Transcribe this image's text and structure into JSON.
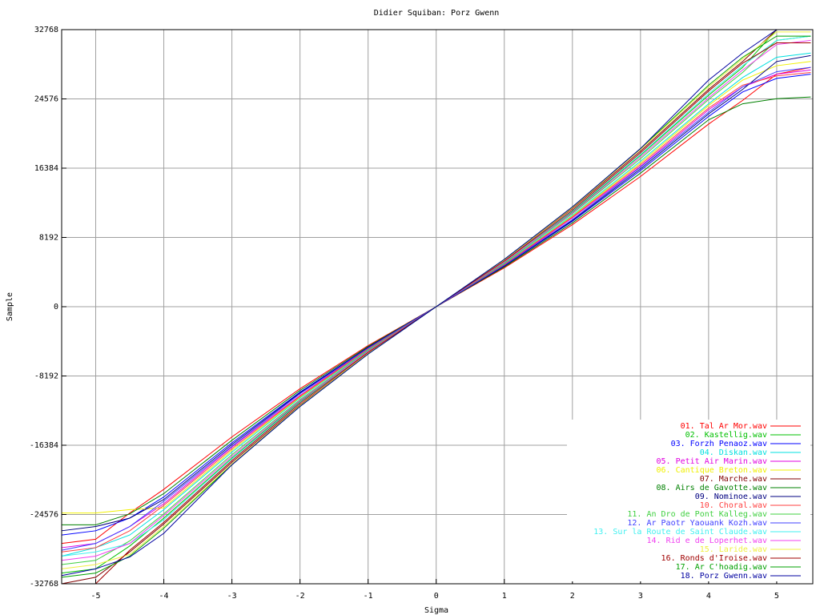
{
  "chart_data": {
    "type": "line",
    "title": "Didier Squiban: Porz Gwenn",
    "x_label": "Sigma",
    "y_label": "Sample",
    "xlim": [
      -5.5,
      5.53
    ],
    "ylim": [
      -32768,
      32768
    ],
    "xticks": [
      -5,
      -4,
      -3,
      -2,
      -1,
      0,
      1,
      2,
      3,
      4,
      5
    ],
    "yticks": [
      -32768,
      -24576,
      -16384,
      -8192,
      0,
      8192,
      16384,
      24576,
      32768
    ],
    "grid": true,
    "legend": "lower right",
    "x": [
      -5.5,
      -5,
      -4.5,
      -4,
      -3,
      -2,
      -1,
      0,
      1,
      2,
      3,
      4,
      4.5,
      5,
      5.5
    ],
    "series": [
      {
        "name": "01. Tal Ar Mor.wav",
        "color": "#ff0000",
        "values": [
          -28000,
          -27500,
          -24400,
          -21600,
          -15400,
          -9700,
          -4600,
          0,
          4600,
          9700,
          15400,
          21600,
          24400,
          27500,
          28300
        ]
      },
      {
        "name": "02. Kastellig.wav",
        "color": "#00c000",
        "values": [
          -31500,
          -31000,
          -28300,
          -25000,
          -17900,
          -11200,
          -5300,
          0,
          5300,
          11200,
          17900,
          25000,
          28300,
          32767,
          32767
        ]
      },
      {
        "name": "03. Forzh Penaoz.wav",
        "color": "#0000ff",
        "values": [
          -27000,
          -26500,
          -25000,
          -22500,
          -16100,
          -10100,
          -4800,
          0,
          4800,
          10100,
          16100,
          22500,
          25400,
          27000,
          27500
        ]
      },
      {
        "name": "04. Diskan.wav",
        "color": "#00e0e0",
        "values": [
          -29500,
          -28500,
          -27000,
          -24000,
          -17200,
          -10800,
          -5100,
          0,
          5100,
          10800,
          17200,
          24000,
          27100,
          29500,
          30000
        ]
      },
      {
        "name": "05. Petit Air Marin.wav",
        "color": "#e000e0",
        "values": [
          -28500,
          -28000,
          -26000,
          -23300,
          -16600,
          -10500,
          -4900,
          0,
          4900,
          10500,
          16600,
          23300,
          26000,
          27500,
          28000
        ]
      },
      {
        "name": "06. Cantique Breton.wav",
        "color": "#f0f000",
        "values": [
          -24400,
          -24400,
          -24000,
          -23800,
          -17000,
          -10700,
          -5000,
          0,
          5000,
          10700,
          17000,
          23800,
          26800,
          28500,
          29000
        ]
      },
      {
        "name": "07. Marche.wav",
        "color": "#800000",
        "values": [
          -32767,
          -32000,
          -29000,
          -25700,
          -18400,
          -11600,
          -5500,
          0,
          5500,
          11600,
          18400,
          25700,
          29000,
          32767,
          32767
        ]
      },
      {
        "name": "08. Airs de Gavotte.wav",
        "color": "#008000",
        "values": [
          -25800,
          -25800,
          -24500,
          -22100,
          -15800,
          -9900,
          -4700,
          0,
          4700,
          9900,
          15800,
          22100,
          24000,
          24600,
          24800
        ]
      },
      {
        "name": "09. Nominoe.wav",
        "color": "#000080",
        "values": [
          -26500,
          -26000,
          -25000,
          -22800,
          -16300,
          -10200,
          -4800,
          0,
          4800,
          10200,
          16300,
          22800,
          25700,
          29000,
          29700
        ]
      },
      {
        "name": "10. Choral.wav",
        "color": "#ff4040",
        "values": [
          -29000,
          -28500,
          -26500,
          -23500,
          -16800,
          -10600,
          -5000,
          0,
          5000,
          10600,
          16800,
          23500,
          26200,
          27300,
          27700
        ]
      },
      {
        "name": "11. An Dro de Pont Kalleg.wav",
        "color": "#40d040",
        "values": [
          -30500,
          -30000,
          -27700,
          -24500,
          -17500,
          -11000,
          -5200,
          0,
          5200,
          11000,
          17500,
          24500,
          27700,
          31500,
          32000
        ]
      },
      {
        "name": "12. Ar Paotr Yaouank Kozh.wav",
        "color": "#4040ff",
        "values": [
          -28800,
          -28000,
          -26000,
          -23000,
          -16500,
          -10300,
          -4900,
          0,
          4900,
          10300,
          16500,
          23000,
          26000,
          27800,
          28300
        ]
      },
      {
        "name": "13. Sur la Route de Saint Claude.wav",
        "color": "#40f0f0",
        "values": [
          -29500,
          -29000,
          -28000,
          -25200,
          -18000,
          -11300,
          -5400,
          0,
          5400,
          11300,
          18000,
          25200,
          28500,
          31500,
          32000
        ]
      },
      {
        "name": "14. Rid e de Loperhet.wav",
        "color": "#f040f0",
        "values": [
          -30000,
          -29500,
          -28000,
          -24700,
          -17700,
          -11100,
          -5300,
          0,
          5300,
          11100,
          17700,
          24700,
          28000,
          31000,
          31500
        ]
      },
      {
        "name": "15. Laride.wav",
        "color": "#f0f040",
        "values": [
          -31000,
          -30500,
          -29300,
          -26000,
          -18600,
          -11700,
          -5500,
          0,
          5500,
          11700,
          18600,
          26000,
          29300,
          32500,
          32500
        ]
      },
      {
        "name": "16. Ronds d'Iroise.wav",
        "color": "#a00000",
        "values": [
          -32767,
          -32767,
          -28800,
          -25500,
          -18200,
          -11400,
          -5400,
          0,
          5400,
          11400,
          18200,
          25500,
          28800,
          31200,
          31200
        ]
      },
      {
        "name": "17. Ar C'hoadig.wav",
        "color": "#00a000",
        "values": [
          -32000,
          -31500,
          -29500,
          -26200,
          -18700,
          -11800,
          -5600,
          0,
          5600,
          11800,
          18700,
          26200,
          29500,
          32000,
          32000
        ]
      },
      {
        "name": "18. Porz Gwenn.wav",
        "color": "#0000a0",
        "values": [
          -31800,
          -31000,
          -29600,
          -26800,
          -18700,
          -11800,
          -5600,
          0,
          5600,
          11800,
          18700,
          26800,
          30000,
          32767,
          32767
        ]
      }
    ]
  }
}
